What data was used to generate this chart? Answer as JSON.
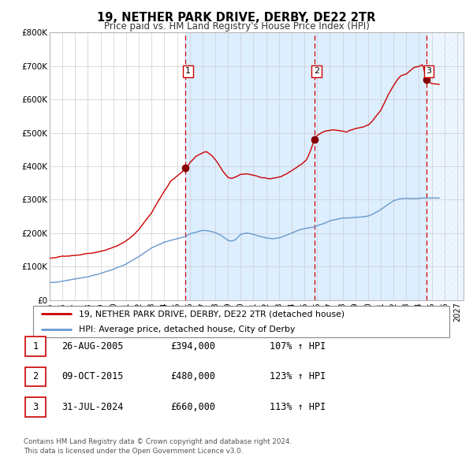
{
  "title": "19, NETHER PARK DRIVE, DERBY, DE22 2TR",
  "subtitle": "Price paid vs. HM Land Registry's House Price Index (HPI)",
  "ylim": [
    0,
    800000
  ],
  "yticks": [
    0,
    100000,
    200000,
    300000,
    400000,
    500000,
    600000,
    700000,
    800000
  ],
  "ytick_labels": [
    "£0",
    "£100K",
    "£200K",
    "£300K",
    "£400K",
    "£500K",
    "£600K",
    "£700K",
    "£800K"
  ],
  "xlim_start": 1995.0,
  "xlim_end": 2027.5,
  "xticks": [
    1995,
    1996,
    1997,
    1998,
    1999,
    2000,
    2001,
    2002,
    2003,
    2004,
    2005,
    2006,
    2007,
    2008,
    2009,
    2010,
    2011,
    2012,
    2013,
    2014,
    2015,
    2016,
    2017,
    2018,
    2019,
    2020,
    2021,
    2022,
    2023,
    2024,
    2025,
    2026,
    2027
  ],
  "property_color": "#cc0000",
  "hpi_color": "#6699cc",
  "sale_marker_color": "#880000",
  "shade_color": "#ddeeff",
  "hatch_color": "#ccddee",
  "sale_vline_color": "#cc0000",
  "purchases": [
    {
      "year": 2005.65,
      "price": 394000,
      "label": "1"
    },
    {
      "year": 2015.77,
      "price": 480000,
      "label": "2"
    },
    {
      "year": 2024.58,
      "price": 660000,
      "label": "3"
    }
  ],
  "table_rows": [
    {
      "num": "1",
      "date": "26-AUG-2005",
      "price": "£394,000",
      "hpi": "107% ↑ HPI"
    },
    {
      "num": "2",
      "date": "09-OCT-2015",
      "price": "£480,000",
      "hpi": "123% ↑ HPI"
    },
    {
      "num": "3",
      "date": "31-JUL-2024",
      "price": "£660,000",
      "hpi": "113% ↑ HPI"
    }
  ],
  "footer": "Contains HM Land Registry data © Crown copyright and database right 2024.\nThis data is licensed under the Open Government Licence v3.0.",
  "legend_line1": "19, NETHER PARK DRIVE, DERBY, DE22 2TR (detached house)",
  "legend_line2": "HPI: Average price, detached house, City of Derby"
}
